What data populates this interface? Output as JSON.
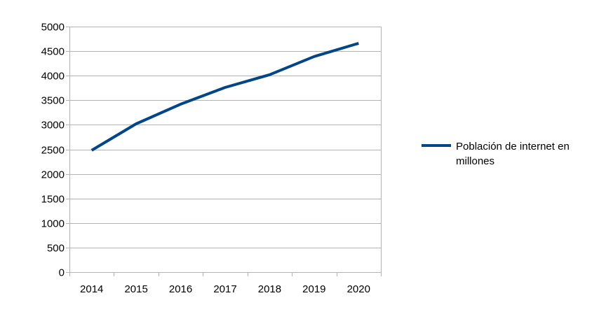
{
  "chart_data": {
    "type": "line",
    "categories": [
      "2014",
      "2015",
      "2016",
      "2017",
      "2018",
      "2019",
      "2020"
    ],
    "series": [
      {
        "name": "Población de internet en millones",
        "values": [
          2480,
          3020,
          3420,
          3760,
          4020,
          4390,
          4660
        ],
        "color": "#004586"
      }
    ],
    "y_ticks": [
      0,
      500,
      1000,
      1500,
      2000,
      2500,
      3000,
      3500,
      4000,
      4500,
      5000
    ],
    "ylim": [
      0,
      5000
    ],
    "grid": true,
    "legend_position": "right",
    "legend_lines": [
      "Población de internet en",
      "millones"
    ]
  }
}
